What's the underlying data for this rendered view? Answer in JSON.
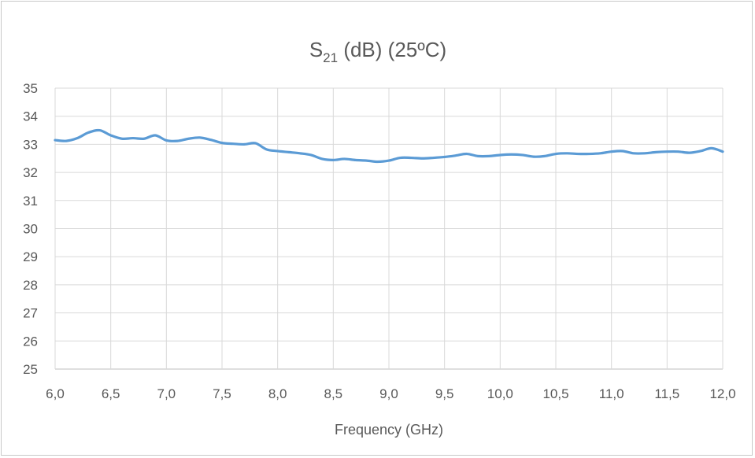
{
  "chart_data": {
    "type": "line",
    "title": {
      "main": "S",
      "sub": "21",
      "rest": " (dB) (25ºC)"
    },
    "xlabel": "Frequency (GHz)",
    "ylabel": "",
    "xlim": [
      6.0,
      12.0
    ],
    "ylim": [
      25,
      35
    ],
    "x_ticks": [
      6.0,
      6.5,
      7.0,
      7.5,
      8.0,
      8.5,
      9.0,
      9.5,
      10.0,
      10.5,
      11.0,
      11.5,
      12.0
    ],
    "x_tick_labels": [
      "6,0",
      "6,5",
      "7,0",
      "7,5",
      "8,0",
      "8,5",
      "9,0",
      "9,5",
      "10,0",
      "10,5",
      "11,0",
      "11,5",
      "12,0"
    ],
    "y_ticks": [
      25,
      26,
      27,
      28,
      29,
      30,
      31,
      32,
      33,
      34,
      35
    ],
    "y_tick_labels": [
      "25",
      "26",
      "27",
      "28",
      "29",
      "30",
      "31",
      "32",
      "33",
      "34",
      "35"
    ],
    "grid": true,
    "legend": "none",
    "series": [
      {
        "color": "#5b9bd5",
        "x": [
          6.0,
          6.1,
          6.2,
          6.3,
          6.4,
          6.5,
          6.6,
          6.7,
          6.8,
          6.9,
          7.0,
          7.1,
          7.2,
          7.3,
          7.4,
          7.5,
          7.6,
          7.7,
          7.8,
          7.9,
          8.0,
          8.1,
          8.2,
          8.3,
          8.4,
          8.5,
          8.6,
          8.7,
          8.8,
          8.9,
          9.0,
          9.1,
          9.2,
          9.3,
          9.4,
          9.5,
          9.6,
          9.7,
          9.8,
          9.9,
          10.0,
          10.1,
          10.2,
          10.3,
          10.4,
          10.5,
          10.6,
          10.7,
          10.8,
          10.9,
          11.0,
          11.1,
          11.2,
          11.3,
          11.4,
          11.5,
          11.6,
          11.7,
          11.8,
          11.9,
          12.0
        ],
        "y": [
          33.15,
          33.12,
          33.22,
          33.42,
          33.5,
          33.32,
          33.2,
          33.22,
          33.2,
          33.32,
          33.14,
          33.12,
          33.2,
          33.24,
          33.16,
          33.05,
          33.02,
          33.0,
          33.04,
          32.82,
          32.76,
          32.72,
          32.68,
          32.62,
          32.48,
          32.44,
          32.48,
          32.44,
          32.42,
          32.38,
          32.42,
          32.52,
          32.52,
          32.5,
          32.52,
          32.55,
          32.6,
          32.66,
          32.58,
          32.58,
          32.62,
          32.64,
          32.62,
          32.56,
          32.58,
          32.66,
          32.68,
          32.66,
          32.66,
          32.68,
          32.74,
          32.76,
          32.68,
          32.68,
          32.72,
          32.74,
          32.74,
          32.7,
          32.76,
          32.86,
          32.74
        ]
      }
    ]
  }
}
